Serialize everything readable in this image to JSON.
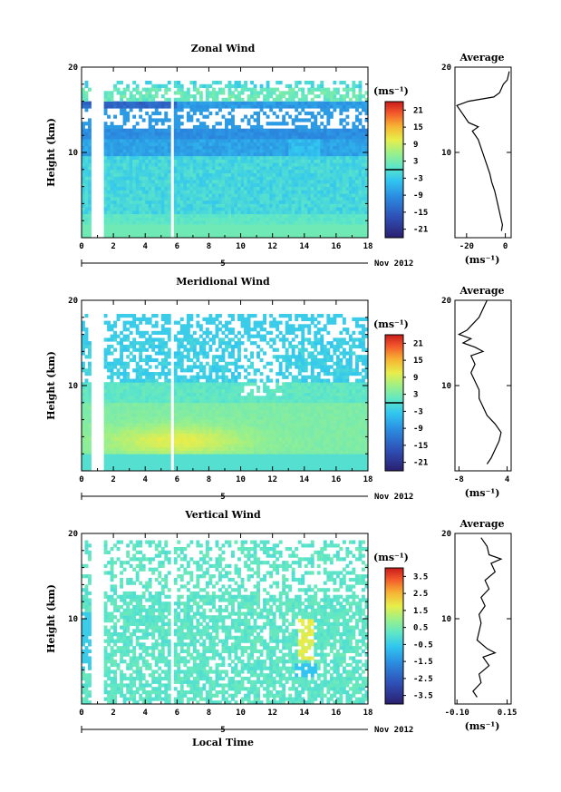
{
  "figure": {
    "date_label": "Nov 2012",
    "date_marker": "5",
    "x_label": "Local Time",
    "y_label": "Height (km)",
    "unit_label": "(ms⁻¹)",
    "avg_title": "Average"
  },
  "chart_data": [
    {
      "type": "heatmap",
      "title": "Zonal Wind",
      "xlabel": "",
      "ylabel": "Height (km)",
      "xlim": [
        0,
        18
      ],
      "ylim": [
        0,
        20
      ],
      "x_ticks": [
        0,
        2,
        4,
        6,
        8,
        10,
        12,
        14,
        16,
        18
      ],
      "y_ticks": [
        10,
        20
      ],
      "colorbar": {
        "label": "(ms⁻¹)",
        "ticks": [
          21,
          15,
          9,
          3,
          -3,
          -9,
          -15,
          -21
        ],
        "range": [
          -24,
          24
        ]
      },
      "gaps": [
        [
          0.6,
          1.4
        ],
        [
          5.6,
          5.9
        ]
      ],
      "profile": {
        "title": "Average",
        "xlim": [
          -26,
          3
        ],
        "x_ticks": [
          -20,
          0
        ],
        "xlabel": "(ms⁻¹)",
        "points": [
          [
            -2,
            0.8
          ],
          [
            -1.5,
            1.5
          ],
          [
            -2.5,
            2.5
          ],
          [
            -3.5,
            3.5
          ],
          [
            -4.5,
            4.5
          ],
          [
            -5.5,
            5.5
          ],
          [
            -7,
            6.5
          ],
          [
            -8,
            7.5
          ],
          [
            -9.5,
            8.5
          ],
          [
            -11,
            9.5
          ],
          [
            -12.5,
            10.5
          ],
          [
            -14,
            11.5
          ],
          [
            -17,
            12.5
          ],
          [
            -14,
            13
          ],
          [
            -19,
            13.5
          ],
          [
            -22,
            14.5
          ],
          [
            -25,
            15.5
          ],
          [
            -19,
            16
          ],
          [
            -6,
            16.5
          ],
          [
            -3,
            17
          ],
          [
            -1,
            18
          ],
          [
            1,
            18.5
          ],
          [
            2,
            19.5
          ]
        ]
      }
    },
    {
      "type": "heatmap",
      "title": "Meridional Wind",
      "xlabel": "",
      "ylabel": "Height (km)",
      "xlim": [
        0,
        18
      ],
      "ylim": [
        0,
        20
      ],
      "x_ticks": [
        0,
        2,
        4,
        6,
        8,
        10,
        12,
        14,
        16,
        18
      ],
      "y_ticks": [
        10,
        20
      ],
      "colorbar": {
        "label": "(ms⁻¹)",
        "ticks": [
          21,
          15,
          9,
          3,
          -3,
          -9,
          -15,
          -21
        ],
        "range": [
          -24,
          24
        ]
      },
      "gaps": [
        [
          0.6,
          1.4
        ],
        [
          5.6,
          5.9
        ]
      ],
      "profile": {
        "title": "Average",
        "xlim": [
          -9,
          5
        ],
        "x_ticks": [
          -8,
          4
        ],
        "xlabel": "(ms⁻¹)",
        "points": [
          [
            -1,
            0.8
          ],
          [
            0,
            1.5
          ],
          [
            1,
            2.5
          ],
          [
            2,
            3.5
          ],
          [
            2.5,
            4.5
          ],
          [
            1,
            5.5
          ],
          [
            -1,
            6.5
          ],
          [
            -2,
            7.5
          ],
          [
            -3,
            8.5
          ],
          [
            -3,
            9.5
          ],
          [
            -4,
            10.5
          ],
          [
            -5,
            11.5
          ],
          [
            -4,
            12.5
          ],
          [
            -5,
            13.5
          ],
          [
            -2,
            14
          ],
          [
            -4,
            14.5
          ],
          [
            -7,
            15
          ],
          [
            -5,
            15.5
          ],
          [
            -8,
            16
          ],
          [
            -6,
            16.5
          ],
          [
            -5,
            17
          ],
          [
            -3,
            18
          ],
          [
            -2,
            19
          ],
          [
            -1,
            20
          ]
        ]
      }
    },
    {
      "type": "heatmap",
      "title": "Vertical Wind",
      "xlabel": "Local Time",
      "ylabel": "Height (km)",
      "xlim": [
        0,
        18
      ],
      "ylim": [
        0,
        20
      ],
      "x_ticks": [
        0,
        2,
        4,
        6,
        8,
        10,
        12,
        14,
        16,
        18
      ],
      "y_ticks": [
        10,
        20
      ],
      "colorbar": {
        "label": "(ms⁻¹)",
        "ticks": [
          3.5,
          2.5,
          1.5,
          0.5,
          -0.5,
          -1.5,
          -2.5,
          -3.5
        ],
        "range": [
          -4,
          4
        ]
      },
      "gaps": [
        [
          0.6,
          1.4
        ],
        [
          5.6,
          5.9
        ]
      ],
      "profile": {
        "title": "Average",
        "xlim": [
          -0.11,
          0.17
        ],
        "x_ticks": [
          -0.1,
          0.15
        ],
        "xlabel": "(ms⁻¹)",
        "points": [
          [
            0,
            0.8
          ],
          [
            -0.02,
            1.5
          ],
          [
            0.02,
            2.5
          ],
          [
            0.01,
            3.5
          ],
          [
            0.06,
            4.5
          ],
          [
            0.03,
            5.5
          ],
          [
            0.09,
            6
          ],
          [
            0.05,
            6.5
          ],
          [
            0,
            7.5
          ],
          [
            0.01,
            8.5
          ],
          [
            0.02,
            9.5
          ],
          [
            0.01,
            10.5
          ],
          [
            0.04,
            11.5
          ],
          [
            0.02,
            12.5
          ],
          [
            0.06,
            13.5
          ],
          [
            0.04,
            14.5
          ],
          [
            0.09,
            15.5
          ],
          [
            0.07,
            16.5
          ],
          [
            0.12,
            17
          ],
          [
            0.06,
            17.5
          ],
          [
            0.05,
            18.5
          ],
          [
            0.02,
            19.5
          ]
        ]
      }
    }
  ]
}
